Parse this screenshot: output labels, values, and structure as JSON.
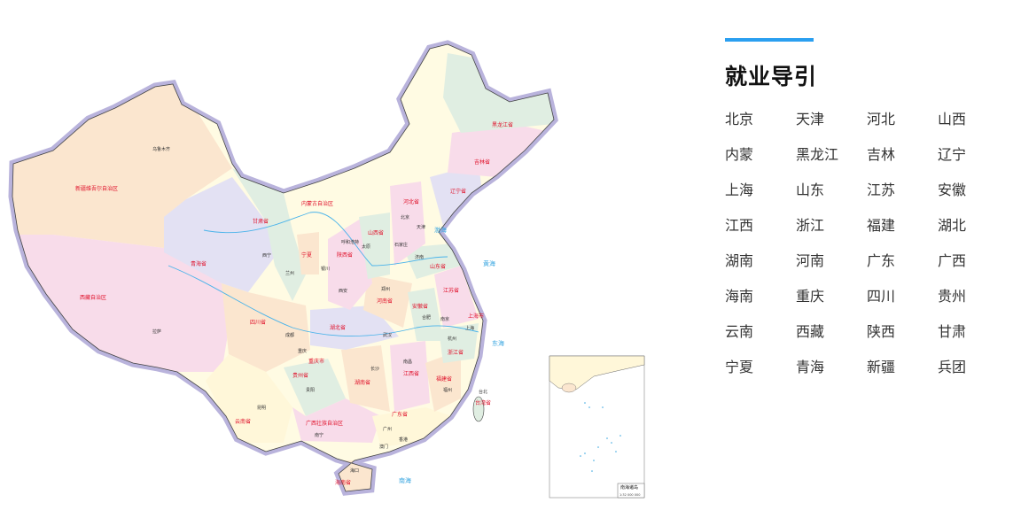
{
  "panel": {
    "title": "就业导引",
    "accent_color": "#2a9ff0",
    "provinces": [
      "北京",
      "天津",
      "河北",
      "山西",
      "内蒙",
      "黑龙江",
      "吉林",
      "辽宁",
      "上海",
      "山东",
      "江苏",
      "安徽",
      "江西",
      "浙江",
      "福建",
      "湖北",
      "湖南",
      "河南",
      "广东",
      "广西",
      "海南",
      "重庆",
      "四川",
      "贵州",
      "云南",
      "西藏",
      "陕西",
      "甘肃",
      "宁夏",
      "青海",
      "新疆",
      "兵团"
    ]
  },
  "map": {
    "province_labels": [
      "新疆维吾尔自治区",
      "西藏自治区",
      "青海省",
      "甘肃省",
      "内蒙古自治区",
      "黑龙江省",
      "吉林省",
      "辽宁省",
      "河北省",
      "山西省",
      "陕西省",
      "河南省",
      "山东省",
      "江苏省",
      "安徽省",
      "湖北省",
      "四川省",
      "重庆市",
      "湖南省",
      "江西省",
      "浙江省",
      "福建省",
      "贵州省",
      "云南省",
      "广西壮族自治区",
      "广东省",
      "海南省",
      "台湾省",
      "上海市",
      "宁夏"
    ],
    "city_labels": [
      "乌鲁木齐",
      "拉萨",
      "西宁",
      "兰州",
      "银川",
      "呼和浩特",
      "北京",
      "天津",
      "石家庄",
      "太原",
      "济南",
      "西安",
      "郑州",
      "合肥",
      "南京",
      "上海",
      "杭州",
      "武汉",
      "成都",
      "重庆",
      "长沙",
      "南昌",
      "福州",
      "贵阳",
      "昆明",
      "南宁",
      "广州",
      "香港",
      "澳门",
      "海口",
      "台北"
    ],
    "sea_labels": [
      "渤海",
      "黄海",
      "东海",
      "南海"
    ],
    "inset_title": "南海诸岛",
    "inset_scale": "1:32 000 000"
  }
}
